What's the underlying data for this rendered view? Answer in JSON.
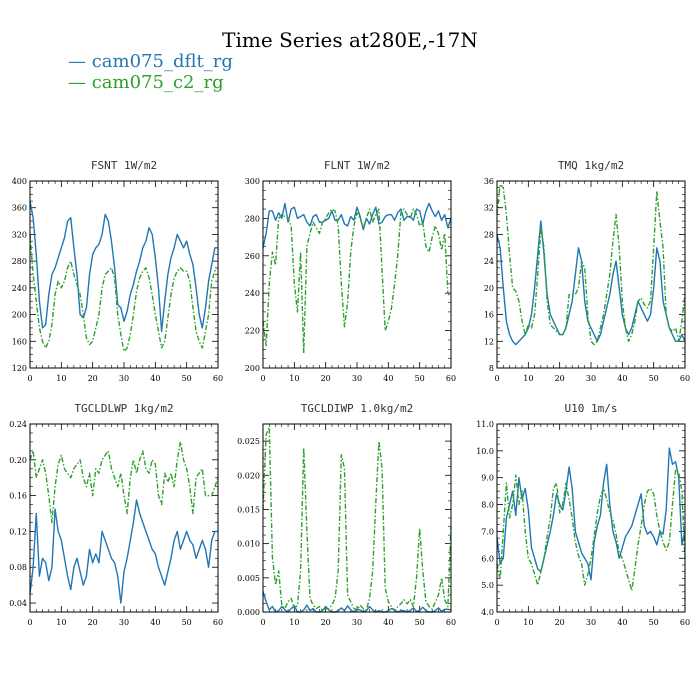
{
  "title": "Time Series at280E,-17N",
  "legend": [
    {
      "label": "— cam075_dflt_rg",
      "color": "#1f77b4"
    },
    {
      "label": "— cam075_c2_rg",
      "color": "#2ca02c"
    }
  ],
  "chart_data": [
    {
      "type": "line",
      "title": "FSNT   1W/m2",
      "xlim": [
        0,
        60
      ],
      "ylim": [
        120,
        400
      ],
      "xticks": [
        0,
        10,
        20,
        30,
        40,
        50,
        60
      ],
      "yticks": [
        120,
        160,
        200,
        240,
        280,
        320,
        360,
        400
      ],
      "series": [
        {
          "name": "cam075_dflt_rg",
          "color": "#1f77b4",
          "dashed": false,
          "values": [
            370,
            345,
            290,
            220,
            180,
            185,
            230,
            260,
            270,
            285,
            300,
            315,
            340,
            345,
            300,
            260,
            200,
            195,
            210,
            260,
            290,
            300,
            305,
            320,
            350,
            340,
            310,
            270,
            215,
            210,
            190,
            205,
            230,
            245,
            265,
            280,
            300,
            310,
            330,
            320,
            285,
            240,
            175,
            220,
            260,
            285,
            300,
            320,
            310,
            300,
            310,
            290,
            275,
            240,
            200,
            180,
            210,
            250,
            275,
            300,
            300
          ]
        },
        {
          "name": "cam075_c2_rg",
          "color": "#2ca02c",
          "dashed": true,
          "values": [
            320,
            260,
            220,
            180,
            160,
            150,
            160,
            185,
            230,
            250,
            240,
            250,
            270,
            280,
            260,
            245,
            230,
            200,
            165,
            155,
            160,
            180,
            200,
            240,
            260,
            265,
            270,
            255,
            200,
            170,
            145,
            150,
            170,
            200,
            235,
            255,
            265,
            270,
            255,
            230,
            200,
            175,
            150,
            160,
            195,
            230,
            255,
            265,
            270,
            265,
            265,
            250,
            210,
            175,
            160,
            150,
            175,
            200,
            250,
            265,
            270
          ]
        }
      ]
    },
    {
      "type": "line",
      "title": "FLNT   1W/m2",
      "xlim": [
        0,
        60
      ],
      "ylim": [
        200,
        300
      ],
      "xticks": [
        0,
        10,
        20,
        30,
        40,
        50,
        60
      ],
      "yticks": [
        200,
        220,
        240,
        260,
        280,
        300
      ],
      "series": [
        {
          "name": "cam075_dflt_rg",
          "color": "#1f77b4",
          "dashed": false,
          "values": [
            264,
            272,
            284,
            284,
            279,
            283,
            280,
            288,
            278,
            285,
            286,
            280,
            281,
            282,
            278,
            276,
            281,
            282,
            278,
            278,
            279,
            280,
            284,
            279,
            279,
            282,
            277,
            276,
            281,
            279,
            286,
            281,
            274,
            280,
            277,
            282,
            286,
            277,
            278,
            281,
            282,
            282,
            279,
            283,
            285,
            279,
            281,
            281,
            279,
            285,
            284,
            277,
            284,
            288,
            284,
            281,
            284,
            279,
            282,
            275,
            280
          ]
        },
        {
          "name": "cam075_c2_rg",
          "color": "#2ca02c",
          "dashed": true,
          "values": [
            225,
            212,
            245,
            262,
            255,
            280,
            282,
            281,
            280,
            276,
            245,
            230,
            262,
            208,
            265,
            272,
            278,
            275,
            272,
            278,
            280,
            283,
            285,
            284,
            276,
            245,
            222,
            235,
            262,
            276,
            283,
            280,
            275,
            280,
            285,
            278,
            282,
            285,
            252,
            220,
            225,
            232,
            245,
            260,
            283,
            285,
            282,
            280,
            285,
            282,
            276,
            278,
            265,
            262,
            270,
            276,
            272,
            263,
            272,
            240,
            238
          ]
        }
      ]
    },
    {
      "type": "line",
      "title": "TMQ   1kg/m2",
      "xlim": [
        0,
        60
      ],
      "ylim": [
        8,
        36
      ],
      "xticks": [
        0,
        10,
        20,
        30,
        40,
        50,
        60
      ],
      "yticks": [
        8,
        12,
        16,
        20,
        24,
        28,
        32,
        36
      ],
      "series": [
        {
          "name": "cam075_dflt_rg",
          "color": "#1f77b4",
          "dashed": false,
          "values": [
            28,
            26,
            20,
            15,
            13,
            12,
            11.5,
            12,
            12.5,
            13,
            14,
            16,
            20,
            25,
            30,
            25,
            19,
            16,
            15,
            14,
            13,
            13,
            14,
            16,
            18,
            22,
            26,
            24,
            18,
            15,
            14,
            13,
            12,
            13,
            15,
            17,
            19,
            22,
            24,
            20,
            16,
            14,
            13,
            14,
            16,
            18,
            17,
            16,
            15,
            16,
            20,
            26,
            24,
            18,
            16,
            14,
            13,
            12,
            12,
            13,
            12
          ]
        },
        {
          "name": "cam075_c2_rg",
          "color": "#2ca02c",
          "dashed": true,
          "values": [
            31,
            35.5,
            35,
            31,
            25,
            20,
            19.5,
            18,
            15,
            13,
            14.5,
            14,
            16,
            22,
            29,
            26,
            18,
            14.5,
            14,
            13.5,
            13,
            13,
            14,
            19,
            19,
            19,
            20,
            24,
            23,
            16,
            12,
            11.5,
            12,
            14,
            16,
            19,
            22,
            27,
            31,
            26,
            18,
            14,
            12,
            13,
            15,
            18,
            18.5,
            17.5,
            17,
            18,
            26,
            34.5,
            30,
            26,
            16,
            14,
            13.5,
            14,
            12,
            15,
            19
          ]
        }
      ]
    },
    {
      "type": "line",
      "title": "TGCLDLWP   1kg/m2",
      "xlim": [
        0,
        60
      ],
      "ylim": [
        0.03,
        0.24
      ],
      "xticks": [
        0,
        10,
        20,
        30,
        40,
        50,
        60
      ],
      "yticks": [
        0.04,
        0.08,
        0.12,
        0.16,
        0.2,
        0.24
      ],
      "yticklabels": [
        "0.04",
        "0.08",
        "0.12",
        "0.16",
        "0.20",
        "0.24"
      ],
      "series": [
        {
          "name": "cam075_dflt_rg",
          "color": "#1f77b4",
          "dashed": false,
          "values": [
            0.05,
            0.08,
            0.14,
            0.07,
            0.09,
            0.085,
            0.065,
            0.08,
            0.145,
            0.12,
            0.11,
            0.09,
            0.07,
            0.055,
            0.08,
            0.09,
            0.075,
            0.06,
            0.07,
            0.1,
            0.085,
            0.095,
            0.085,
            0.12,
            0.11,
            0.1,
            0.09,
            0.085,
            0.07,
            0.04,
            0.075,
            0.09,
            0.11,
            0.13,
            0.155,
            0.14,
            0.13,
            0.12,
            0.11,
            0.1,
            0.095,
            0.08,
            0.07,
            0.06,
            0.075,
            0.09,
            0.11,
            0.12,
            0.1,
            0.11,
            0.12,
            0.11,
            0.105,
            0.09,
            0.1,
            0.11,
            0.1,
            0.08,
            0.11,
            0.12,
            0.12
          ]
        },
        {
          "name": "cam075_c2_rg",
          "color": "#2ca02c",
          "dashed": true,
          "values": [
            0.2,
            0.21,
            0.18,
            0.19,
            0.2,
            0.185,
            0.16,
            0.13,
            0.17,
            0.195,
            0.205,
            0.19,
            0.185,
            0.18,
            0.19,
            0.195,
            0.2,
            0.18,
            0.17,
            0.185,
            0.16,
            0.19,
            0.185,
            0.2,
            0.205,
            0.21,
            0.19,
            0.18,
            0.17,
            0.185,
            0.16,
            0.14,
            0.18,
            0.2,
            0.185,
            0.2,
            0.21,
            0.19,
            0.185,
            0.2,
            0.195,
            0.16,
            0.15,
            0.185,
            0.175,
            0.185,
            0.17,
            0.2,
            0.22,
            0.2,
            0.19,
            0.17,
            0.14,
            0.18,
            0.185,
            0.19,
            0.16,
            0.16,
            0.16,
            0.17,
            0.18
          ]
        }
      ]
    },
    {
      "type": "line",
      "title": "TGCLDIWP   1.0kg/m2",
      "xlim": [
        0,
        60
      ],
      "ylim": [
        0,
        0.0275
      ],
      "xticks": [
        0,
        10,
        20,
        30,
        40,
        50,
        60
      ],
      "yticks": [
        0,
        0.005,
        0.01,
        0.015,
        0.02,
        0.025
      ],
      "yticklabels": [
        "0.000",
        "0.005",
        "0.010",
        "0.015",
        "0.020",
        "0.025"
      ],
      "series": [
        {
          "name": "cam075_dflt_rg",
          "color": "#1f77b4",
          "dashed": false,
          "values": [
            0.003,
            0.0015,
            0.0003,
            0.0008,
            0,
            0.0002,
            0.0008,
            0.0003,
            0,
            0.0005,
            0.0009,
            0,
            0,
            0.0003,
            0.001,
            0.0002,
            0.0005,
            0,
            0,
            0.0002,
            0.0008,
            0.0003,
            0,
            0,
            0.0002,
            0.0006,
            0.0002,
            0.0009,
            0.0003,
            0,
            0.0004,
            0.0003,
            0,
            0.0002,
            0.0008,
            0.0003,
            0,
            0.0002,
            0,
            0,
            0.0002,
            0.0005,
            0.0003,
            0,
            0.0002,
            0.0002,
            0,
            0.0002,
            0.0006,
            0.0001,
            0.0002,
            0.0007,
            0.0002,
            0,
            0,
            0.0002,
            0.0006,
            0.0001,
            0.0004,
            0.0004,
            0.0003
          ]
        },
        {
          "name": "cam075_c2_rg",
          "color": "#2ca02c",
          "dashed": true,
          "values": [
            0.015,
            0.026,
            0.027,
            0.008,
            0.004,
            0.006,
            0.001,
            0.0005,
            0.0015,
            0.002,
            0.0005,
            0.001,
            0.006,
            0.024,
            0.012,
            0.002,
            0.001,
            0.0005,
            0.0008,
            0.0003,
            0.0005,
            0.0005,
            0.001,
            0.002,
            0.006,
            0.023,
            0.021,
            0.0025,
            0.0015,
            0.0005,
            0.0003,
            0.001,
            0.0005,
            0.0003,
            0.002,
            0.006,
            0.016,
            0.025,
            0.021,
            0.0035,
            0.0015,
            0.0008,
            0.0002,
            0.0008,
            0.0012,
            0.0018,
            0.0012,
            0.0018,
            0.0008,
            0.005,
            0.0122,
            0.006,
            0.0015,
            0.0008,
            0.0004,
            0.0015,
            0.0025,
            0.005,
            0.0018,
            0.0008,
            0.0125
          ]
        }
      ]
    },
    {
      "type": "line",
      "title": "U10   1m/s",
      "xlim": [
        0,
        60
      ],
      "ylim": [
        4,
        11
      ],
      "xticks": [
        0,
        10,
        20,
        30,
        40,
        50,
        60
      ],
      "yticks": [
        4,
        5,
        6,
        7,
        8,
        9,
        10,
        11
      ],
      "yticklabels": [
        "4.0",
        "5.0",
        "6.0",
        "7.0",
        "8.0",
        "9.0",
        "10.0",
        "11.0"
      ],
      "series": [
        {
          "name": "cam075_dflt_rg",
          "color": "#1f77b4",
          "dashed": false,
          "values": [
            6.8,
            5.8,
            6.0,
            7.5,
            8.0,
            8.5,
            7.6,
            9.0,
            8.2,
            8.6,
            7.8,
            6.4,
            6.0,
            5.6,
            5.5,
            6.0,
            6.5,
            7.0,
            7.6,
            8.4,
            8.0,
            7.8,
            8.5,
            9.4,
            8.6,
            7.0,
            6.6,
            6.2,
            6.0,
            5.8,
            5.2,
            6.6,
            7.2,
            7.6,
            8.8,
            9.5,
            8.0,
            7.0,
            6.6,
            6.0,
            6.4,
            6.8,
            7.0,
            7.2,
            7.6,
            8.0,
            8.4,
            7.2,
            6.9,
            7.0,
            6.8,
            6.5,
            7.0,
            6.9,
            7.8,
            10.1,
            9.5,
            9.6,
            9.0,
            6.5,
            7.0
          ]
        },
        {
          "name": "cam075_c2_rg",
          "color": "#2ca02c",
          "dashed": true,
          "values": [
            5.8,
            5.2,
            7.0,
            8.8,
            7.5,
            8.0,
            9.1,
            8.0,
            8.5,
            7.0,
            6.0,
            5.8,
            5.4,
            5.0,
            5.5,
            6.0,
            6.8,
            7.5,
            8.6,
            8.8,
            7.7,
            8.0,
            8.8,
            8.2,
            7.5,
            6.6,
            6.1,
            5.8,
            5.0,
            5.4,
            6.0,
            6.8,
            7.7,
            8.3,
            8.6,
            8.2,
            7.7,
            7.4,
            6.9,
            6.2,
            6.0,
            5.6,
            5.2,
            4.8,
            5.6,
            6.5,
            7.2,
            8.0,
            8.5,
            8.6,
            8.4,
            7.6,
            7.0,
            6.6,
            6.3,
            6.6,
            8.0,
            9.3,
            9.2,
            8.5,
            6.0
          ]
        }
      ]
    }
  ]
}
